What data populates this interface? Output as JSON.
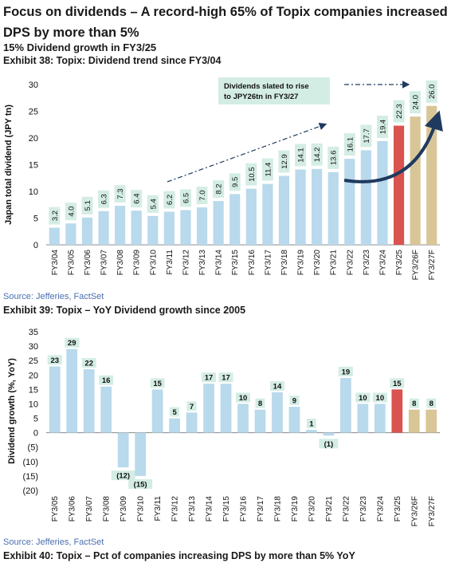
{
  "headline": "Focus on dividends – A record-high 65% of Topix companies increased DPS by more than 5%",
  "subheading": "15% Dividend growth in FY3/25",
  "exhibit38_title": "Exhibit 38: Topix: Dividend trend since FY3/04",
  "exhibit39_title": "Exhibit 39: Topix – YoY Dividend growth since 2005",
  "exhibit40_title": "Exhibit 40: Topix – Pct of companies increasing DPS by more than 5% YoY",
  "source1": "Source: Jefferies, FactSet",
  "source2": "Source: Jefferies, FactSet",
  "colors": {
    "actual": "#b9d9ec",
    "highlight": "#d9534f",
    "forecast": "#d9c697",
    "label_bg": "#d4ede4",
    "arrow": "#1f3a5f"
  },
  "chart_data": [
    {
      "type": "bar",
      "ylabel": "Japan total dividend (JPY tn)",
      "xlabel": "",
      "ylim": [
        0,
        30
      ],
      "yticks": [
        0,
        5,
        10,
        15,
        20,
        25,
        30
      ],
      "categories": [
        "FY3/04",
        "FY3/05",
        "FY3/06",
        "FY3/07",
        "FY3/08",
        "FY3/09",
        "FY3/10",
        "FY3/11",
        "FY3/12",
        "FY3/13",
        "FY3/14",
        "FY3/15",
        "FY3/16",
        "FY3/17",
        "FY3/18",
        "FY3/19",
        "FY3/20",
        "FY3/21",
        "FY3/22",
        "FY3/23",
        "FY3/24",
        "FY3/25",
        "FY3/26F",
        "FY3/27F"
      ],
      "values": [
        3.2,
        4.0,
        5.1,
        6.3,
        7.3,
        6.4,
        5.4,
        6.2,
        6.5,
        7.0,
        8.2,
        9.5,
        10.5,
        11.4,
        12.9,
        14.1,
        14.2,
        13.6,
        16.1,
        17.7,
        19.4,
        22.3,
        24.0,
        26.0
      ],
      "labels": [
        "3.2",
        "4.0",
        "5.1",
        "6.3",
        "7.3",
        "6.4",
        "5.4",
        "6.2",
        "6.5",
        "7.0",
        "8.2",
        "9.5",
        "10.5",
        "11.4",
        "12.9",
        "14.1",
        "14.2",
        "13.6",
        "16.1",
        "17.7",
        "19.4",
        "22.3",
        "24.0",
        "26.0"
      ],
      "bar_colors": [
        "actual",
        "actual",
        "actual",
        "actual",
        "actual",
        "actual",
        "actual",
        "actual",
        "actual",
        "actual",
        "actual",
        "actual",
        "actual",
        "actual",
        "actual",
        "actual",
        "actual",
        "actual",
        "actual",
        "actual",
        "actual",
        "highlight",
        "forecast",
        "forecast"
      ],
      "annotation": "Dividends slated to rise to JPY26tn in FY3/27",
      "grid": false
    },
    {
      "type": "bar",
      "ylabel": "Dividend growth (%, YoY)",
      "xlabel": "",
      "ylim": [
        -20,
        35
      ],
      "yticks": [
        35,
        30,
        25,
        20,
        15,
        10,
        5,
        0,
        -5,
        -10,
        -15,
        -20
      ],
      "ytick_labels": [
        "35",
        "30",
        "25",
        "20",
        "15",
        "10",
        "5",
        "0",
        "(5)",
        "(10)",
        "(15)",
        "(20)"
      ],
      "categories": [
        "FY3/05",
        "FY3/06",
        "FY3/07",
        "FY3/08",
        "FY3/09",
        "FY3/10",
        "FY3/11",
        "FY3/12",
        "FY3/13",
        "FY3/14",
        "FY3/15",
        "FY3/16",
        "FY3/17",
        "FY3/18",
        "FY3/19",
        "FY3/20",
        "FY3/21",
        "FY3/22",
        "FY3/23",
        "FY3/24",
        "FY3/25",
        "FY3/26F",
        "FY3/27F"
      ],
      "values": [
        23,
        29,
        22,
        16,
        -12,
        -15,
        15,
        5,
        7,
        17,
        17,
        10,
        8,
        14,
        9,
        1,
        -1,
        19,
        10,
        10,
        15,
        8,
        8
      ],
      "labels": [
        "23",
        "29",
        "22",
        "16",
        "(12)",
        "(15)",
        "15",
        "5",
        "7",
        "17",
        "17",
        "10",
        "8",
        "14",
        "9",
        "1",
        "(1)",
        "19",
        "10",
        "10",
        "15",
        "8",
        "8"
      ],
      "bar_colors": [
        "actual",
        "actual",
        "actual",
        "actual",
        "actual",
        "actual",
        "actual",
        "actual",
        "actual",
        "actual",
        "actual",
        "actual",
        "actual",
        "actual",
        "actual",
        "actual",
        "actual",
        "actual",
        "actual",
        "actual",
        "highlight",
        "forecast",
        "forecast"
      ],
      "grid": false
    }
  ]
}
